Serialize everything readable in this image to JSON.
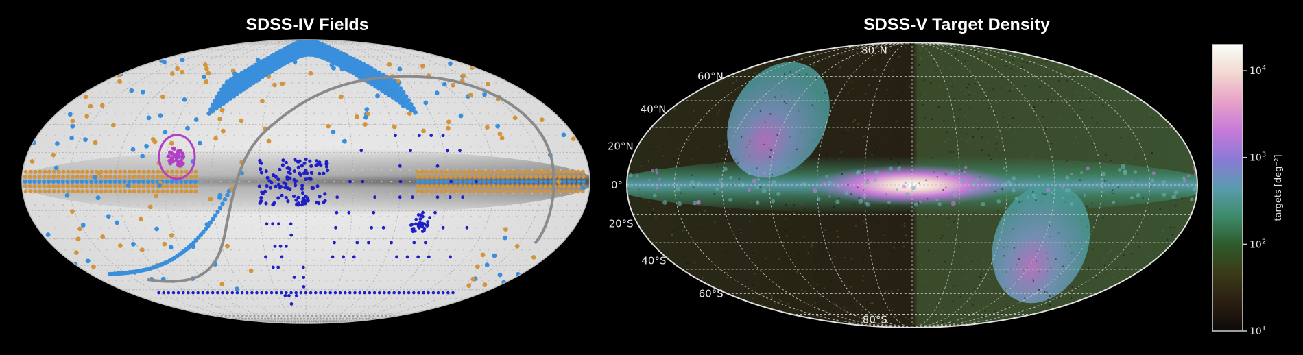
{
  "chart_data": [
    {
      "type": "scatter",
      "title": "SDSS-IV Fields",
      "projection": "Mollweide (Aitoff-like all-sky)",
      "background": "light gray sky with dark gray Galactic plane band",
      "series_colors": {
        "survey_a": "#3a8fdc",
        "survey_b": "#d4943a",
        "survey_c": "#1f1fc8",
        "highlight": "#b23fc4",
        "track": "#8a8a8a"
      },
      "grid": true
    },
    {
      "type": "heatmap",
      "title": "SDSS-V Target Density",
      "projection": "Mollweide (Aitoff-like all-sky)",
      "lat_ticks": [
        "80°N",
        "60°N",
        "40°N",
        "20°N",
        "0°",
        "20°S",
        "40°S",
        "60°S",
        "80°S"
      ],
      "colorbar": {
        "label": "targets [deg⁻²]",
        "scale": "log",
        "range": [
          10,
          20000
        ],
        "ticks": [
          {
            "base": "10",
            "exp": "1",
            "value": 10
          },
          {
            "base": "10",
            "exp": "2",
            "value": 100
          },
          {
            "base": "10",
            "exp": "3",
            "value": 1000
          },
          {
            "base": "10",
            "exp": "4",
            "value": 10000
          }
        ],
        "colors": [
          "#0d0a0a",
          "#2a1e12",
          "#3a3a18",
          "#2e5a2a",
          "#3d8a6a",
          "#5a9cae",
          "#8a7ad6",
          "#c77ad8",
          "#e8a0c8",
          "#f2d8d0",
          "#f8fff8"
        ]
      },
      "grid": true
    }
  ]
}
